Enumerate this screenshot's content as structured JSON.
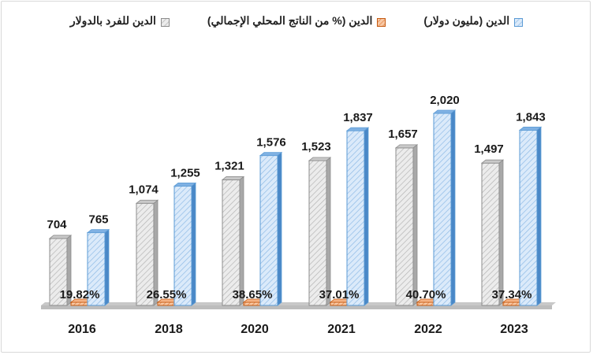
{
  "legend": {
    "per_capita": "الدين للفرد بالدولار",
    "pct_gdp": "الدين (% من الناتج المحلي الإجمالي)",
    "million_usd": "الدين (مليون دولار)"
  },
  "colors": {
    "per_capita_fill": "#e6e6e6",
    "per_capita_stroke": "#8c8c8c",
    "pct_fill": "#f4b183",
    "pct_stroke": "#c55a11",
    "million_fill": "#cfe2f7",
    "million_stroke": "#5b9bd5",
    "floor": "#c8c8c8"
  },
  "chart_data": {
    "type": "bar",
    "categories": [
      "2016",
      "2018",
      "2020",
      "2021",
      "2022",
      "2023"
    ],
    "series": [
      {
        "name": "الدين للفرد بالدولار",
        "values": [
          704,
          1074,
          1321,
          1523,
          1657,
          1497
        ],
        "labels": [
          "704",
          "1,074",
          "1,321",
          "1,523",
          "1,657",
          "1,497"
        ]
      },
      {
        "name": "الدين (% من الناتج المحلي الإجمالي)",
        "values": [
          19.82,
          26.55,
          38.65,
          37.01,
          40.7,
          37.34
        ],
        "labels": [
          "19.82%",
          "26.55%",
          "38.65%",
          "37.01%",
          "40.70%",
          "37.34%"
        ]
      },
      {
        "name": "الدين (مليون دولار)",
        "values": [
          765,
          1255,
          1576,
          1837,
          2020,
          1843
        ],
        "labels": [
          "765",
          "1,255",
          "1,576",
          "1,837",
          "2,020",
          "1,843"
        ]
      }
    ],
    "grid": false,
    "legend_position": "top"
  }
}
